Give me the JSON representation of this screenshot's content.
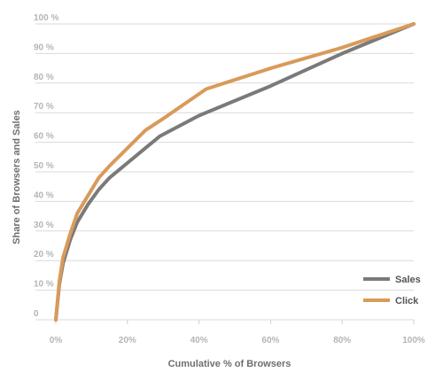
{
  "chart_data": {
    "type": "line",
    "title": "",
    "xlabel": "Cumulative % of Browsers",
    "ylabel": "Share of Browsers and Sales",
    "xlim": [
      0,
      100
    ],
    "ylim": [
      0,
      100
    ],
    "x_ticks": [
      0,
      20,
      40,
      60,
      80,
      100
    ],
    "x_tick_labels": [
      "0%",
      "20%",
      "40%",
      "60%",
      "80%",
      "100%"
    ],
    "y_ticks": [
      0,
      10,
      20,
      30,
      40,
      50,
      60,
      70,
      80,
      90,
      100
    ],
    "y_tick_labels": [
      "0",
      "10 %",
      "20 %",
      "30 %",
      "40 %",
      "50 %",
      "60 %",
      "70 %",
      "80 %",
      "90 %",
      "100 %"
    ],
    "grid": "horizontal",
    "legend_position": "bottom-right",
    "series": [
      {
        "name": "Sales",
        "color": "#7a7a7a",
        "points": [
          [
            0,
            0
          ],
          [
            1,
            12
          ],
          [
            2,
            19
          ],
          [
            4,
            27
          ],
          [
            6,
            33
          ],
          [
            9,
            39
          ],
          [
            12,
            44
          ],
          [
            15,
            48
          ],
          [
            20,
            53
          ],
          [
            24,
            57
          ],
          [
            29,
            62
          ],
          [
            40,
            69
          ],
          [
            60,
            79
          ],
          [
            80,
            90
          ],
          [
            100,
            100
          ]
        ]
      },
      {
        "name": "Click",
        "color": "#d99a5a",
        "points": [
          [
            0,
            0
          ],
          [
            1,
            13
          ],
          [
            2,
            21
          ],
          [
            4,
            29
          ],
          [
            6,
            36
          ],
          [
            9,
            42
          ],
          [
            12,
            48
          ],
          [
            15,
            52
          ],
          [
            20,
            58
          ],
          [
            25,
            64
          ],
          [
            30,
            68
          ],
          [
            42,
            78
          ],
          [
            60,
            85
          ],
          [
            80,
            92
          ],
          [
            100,
            100
          ]
        ]
      }
    ]
  }
}
